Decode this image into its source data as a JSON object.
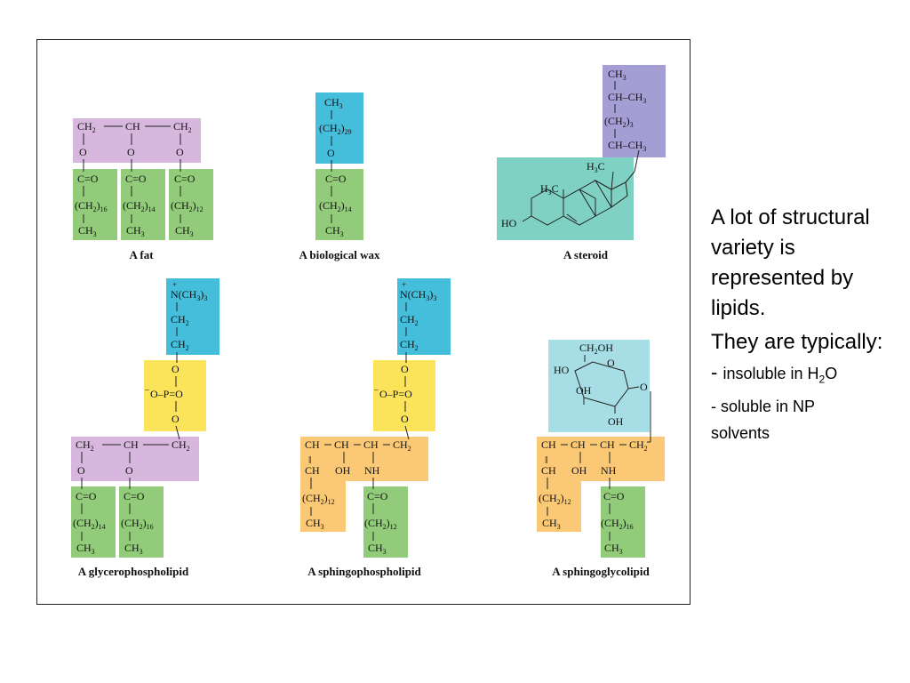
{
  "figure": {
    "colors": {
      "purple": "#d7b7dd",
      "green": "#92cc7a",
      "blue": "#45bedc",
      "lavender": "#a59ed4",
      "teal": "#7fd1c4",
      "yellow": "#fbe35a",
      "orange": "#fbc976",
      "lightblue": "#a7dde5"
    },
    "captions": {
      "fat": "A fat",
      "wax": "A biological wax",
      "steroid": "A steroid",
      "glycerophospholipid": "A glycerophospholipid",
      "sphingophospholipid": "A sphingophospholipid",
      "sphingoglycolipid": "A sphingoglycolipid"
    },
    "chem": {
      "ch2": "CH",
      "ch": "CH",
      "ch3": "CH",
      "o": "O",
      "co": "C=O",
      "oh": "OH",
      "nh": "NH",
      "ho": "HO",
      "h3c": "H",
      "n_me3": "N(CH",
      "phosphate": "O–P=O",
      "ch2oh": "CH",
      "ch_ch3": "CH–CH",
      "plus": "+",
      "minus": "–",
      "dbl": "‖",
      "s2": "2",
      "s3": "3",
      "s12": "12",
      "s14": "14",
      "s16": "16",
      "s29": "29"
    }
  },
  "side_text": {
    "line1": "A lot of structural variety is represented by lipids.",
    "line2": "They are typically:",
    "bullet1_dash": "- ",
    "bullet1_pre": "insoluble in H",
    "bullet1_sub": "2",
    "bullet1_post": "O",
    "bullet2": "- soluble in NP solvents"
  }
}
